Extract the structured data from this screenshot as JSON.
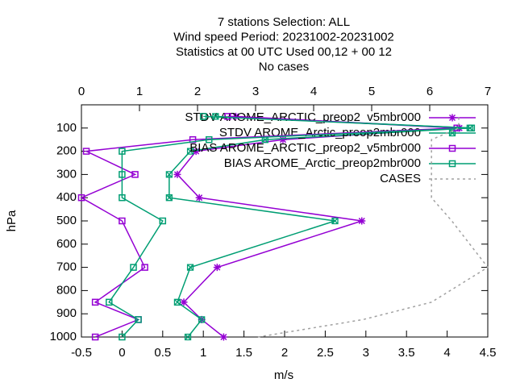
{
  "chart_data": {
    "type": "profile",
    "title_lines": [
      "7 stations Selection: ALL",
      "Wind speed  Period: 20231002-20231002",
      "Statistics at 00 UTC  Used  00,12  + 00 12",
      "No cases"
    ],
    "ylabel": "hPa",
    "xlabel": "m/s",
    "levels": [
      1000,
      925,
      850,
      700,
      500,
      400,
      300,
      200,
      150,
      100,
      50
    ],
    "xlim": [
      -0.5,
      4.5
    ],
    "xticks": [
      -0.5,
      0,
      0.5,
      1,
      1.5,
      2,
      2.5,
      3,
      3.5,
      4,
      4.5
    ],
    "x2lim": [
      0,
      7
    ],
    "x2ticks": [
      0,
      1,
      2,
      3,
      4,
      5,
      6,
      7
    ],
    "ylim": [
      1000,
      0
    ],
    "yticks": [
      100,
      200,
      300,
      400,
      500,
      600,
      700,
      800,
      900,
      1000
    ],
    "series": [
      {
        "name": "STDV AROME_ARCTIC_preop2_v5mbr000",
        "color": "#9400d3",
        "marker": "star",
        "values": [
          1.25,
          0.98,
          0.76,
          1.17,
          2.95,
          0.95,
          0.68,
          0.91,
          1.98,
          4.15,
          1.4
        ]
      },
      {
        "name": "STDV AROME_Arctic_preop2mbr000",
        "color": "#009e73",
        "marker": "boxcross",
        "values": [
          0.81,
          0.98,
          0.68,
          0.84,
          2.62,
          0.58,
          0.58,
          0.84,
          1.76,
          4.28,
          1.15
        ]
      },
      {
        "name": "BIAS AROME_ARCTIC_preop2_v5mbr000",
        "color": "#9400d3",
        "marker": "box",
        "values": [
          -0.33,
          0.2,
          -0.33,
          0.28,
          0,
          -0.5,
          0.16,
          -0.44,
          0.87,
          4.12,
          1.3
        ]
      },
      {
        "name": "BIAS AROME_Arctic_preop2mbr000",
        "color": "#009e73",
        "marker": "box",
        "values": [
          0,
          0.2,
          -0.16,
          0.14,
          0.5,
          0,
          0,
          0,
          1.07,
          4.3,
          1.0
        ]
      },
      {
        "name": "CASES",
        "color": "#a0a0a0",
        "marker": "none",
        "dashed": true,
        "axis": "x2",
        "values": [
          3.04,
          4.85,
          6.03,
          7,
          6.38,
          6.03,
          6.03,
          6.03,
          6.03,
          6.5,
          6.5
        ]
      }
    ]
  }
}
